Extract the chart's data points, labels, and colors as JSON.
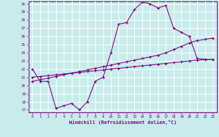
{
  "xlabel": "Windchill (Refroidissement éolien,°C)",
  "bg_color": "#c8ecec",
  "grid_color": "#ffffff",
  "line_color": "#800080",
  "xlim": [
    -0.5,
    23.5
  ],
  "ylim": [
    16.7,
    30.3
  ],
  "xticks": [
    0,
    1,
    2,
    3,
    4,
    5,
    6,
    7,
    8,
    9,
    10,
    11,
    12,
    13,
    14,
    15,
    16,
    17,
    18,
    19,
    20,
    21,
    22,
    23
  ],
  "yticks": [
    17,
    18,
    19,
    20,
    21,
    22,
    23,
    24,
    25,
    26,
    27,
    28,
    29,
    30
  ],
  "line1_x": [
    0,
    1,
    2,
    3,
    4,
    5,
    6,
    7,
    8,
    9,
    10,
    11,
    12,
    13,
    14,
    15,
    16,
    17,
    18,
    19,
    20,
    21,
    22,
    23
  ],
  "line1_y": [
    22.0,
    20.5,
    20.5,
    17.2,
    17.5,
    17.8,
    17.0,
    18.0,
    20.5,
    21.0,
    24.0,
    27.5,
    27.7,
    29.3,
    30.2,
    30.0,
    29.5,
    29.8,
    27.0,
    26.5,
    26.0,
    23.3,
    23.2,
    23.2
  ],
  "line2_x": [
    0,
    1,
    2,
    3,
    4,
    5,
    6,
    7,
    8,
    9,
    10,
    11,
    12,
    13,
    14,
    15,
    16,
    17,
    18,
    19,
    20,
    21,
    22,
    23
  ],
  "line2_y": [
    21.0,
    21.1,
    21.2,
    21.3,
    21.4,
    21.5,
    21.6,
    21.7,
    21.8,
    21.9,
    22.0,
    22.1,
    22.2,
    22.3,
    22.4,
    22.5,
    22.6,
    22.7,
    22.8,
    22.9,
    23.0,
    23.1,
    23.15,
    23.2
  ],
  "line3_x": [
    0,
    1,
    2,
    3,
    4,
    5,
    6,
    7,
    8,
    9,
    10,
    11,
    12,
    13,
    14,
    15,
    16,
    17,
    18,
    19,
    20,
    21,
    22,
    23
  ],
  "line3_y": [
    20.5,
    20.7,
    20.9,
    21.1,
    21.3,
    21.5,
    21.7,
    21.9,
    22.1,
    22.3,
    22.5,
    22.7,
    22.9,
    23.1,
    23.3,
    23.5,
    23.7,
    24.0,
    24.4,
    24.8,
    25.2,
    25.5,
    25.65,
    25.8
  ]
}
